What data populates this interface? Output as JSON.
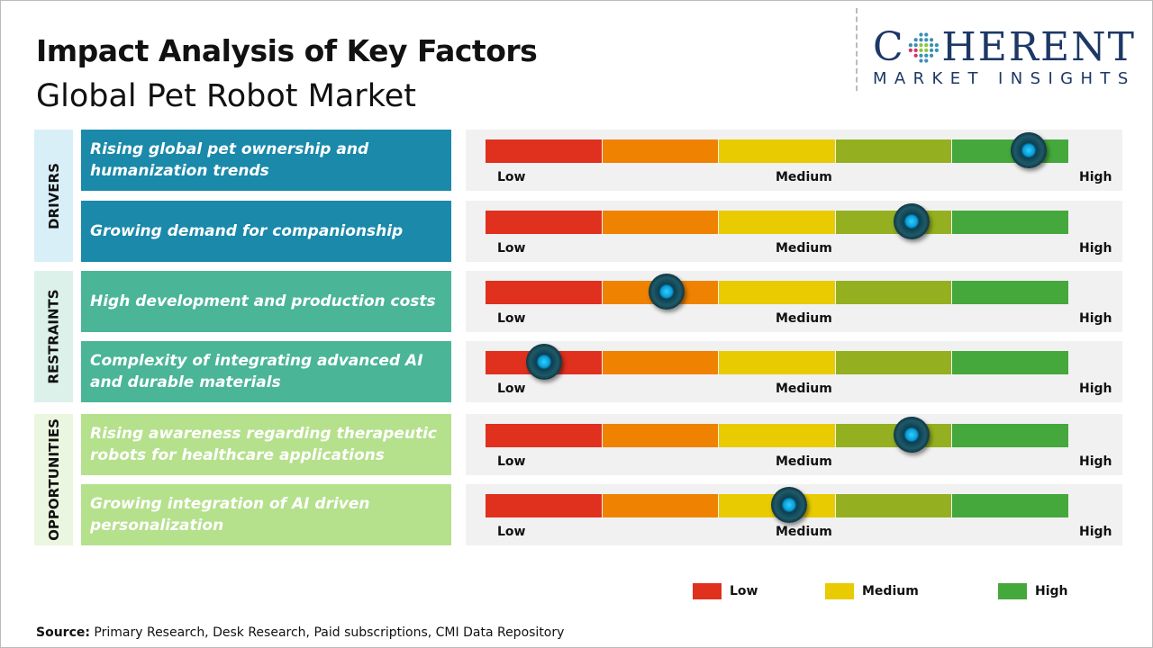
{
  "title": "Impact Analysis of Key Factors",
  "subtitle": "Global Pet Robot Market",
  "logo": {
    "main_left": "C",
    "main_right": "HERENT",
    "sub": "MARKET INSIGHTS"
  },
  "colors": {
    "segments": [
      "#e0301e",
      "#ef8200",
      "#e8cb00",
      "#94b020",
      "#44a83c"
    ],
    "knob": "#1aa9e0"
  },
  "categories": [
    {
      "label": "DRIVERS",
      "color": "#1a89aa",
      "bg": "#d9eff8"
    },
    {
      "label": "RESTRAINTS",
      "color": "#4ab597",
      "bg": "#dcf1ea"
    },
    {
      "label": "OPPORTUNITIES",
      "color": "#b5e08c",
      "bg": "#eaf6df"
    }
  ],
  "chart_data": {
    "type": "gauge-bars",
    "scale_labels": [
      "Low",
      "Medium",
      "High"
    ],
    "scale_range": [
      0,
      1
    ],
    "rows": [
      {
        "category": "DRIVERS",
        "factor": "Rising global pet ownership and humanization trends",
        "value": 0.93
      },
      {
        "category": "DRIVERS",
        "factor": "Growing demand for companionship",
        "value": 0.73
      },
      {
        "category": "RESTRAINTS",
        "factor": "High development and production costs",
        "value": 0.31
      },
      {
        "category": "RESTRAINTS",
        "factor": "Complexity of integrating advanced AI and durable materials",
        "value": 0.1
      },
      {
        "category": "OPPORTUNITIES",
        "factor": "Rising awareness regarding therapeutic robots for healthcare applications",
        "value": 0.73
      },
      {
        "category": "OPPORTUNITIES",
        "factor": "Growing integration of AI driven personalization",
        "value": 0.52
      }
    ],
    "legend": [
      {
        "label": "Low",
        "color": "#e0301e"
      },
      {
        "label": "Medium",
        "color": "#e8cb00"
      },
      {
        "label": "High",
        "color": "#44a83c"
      }
    ]
  },
  "source": {
    "label": "Source:",
    "text": " Primary Research, Desk Research, Paid subscriptions, CMI Data Repository"
  }
}
